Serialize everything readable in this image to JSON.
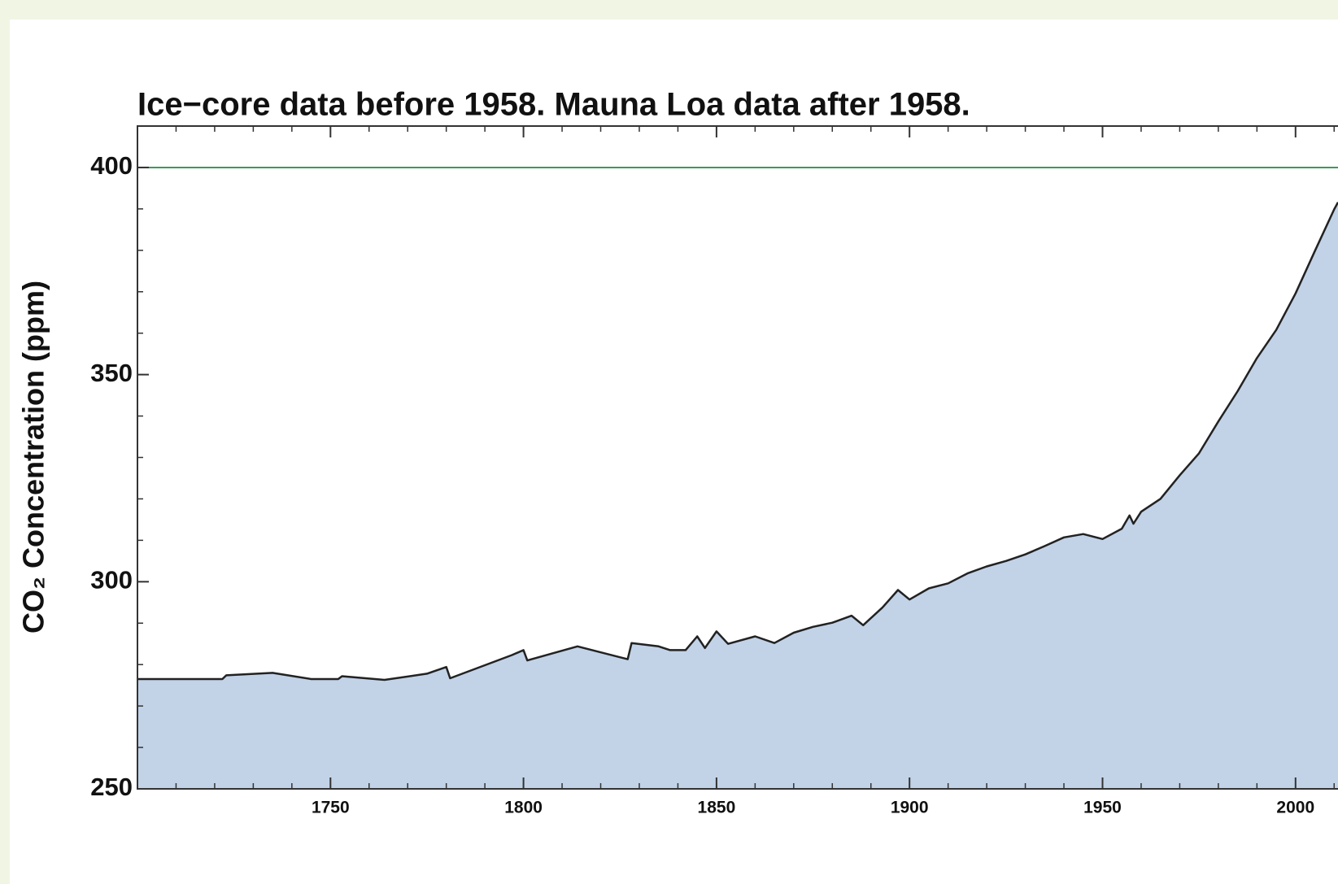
{
  "chart_data": {
    "type": "area",
    "title": "Ice−core data before 1958. Mauna Loa data after 1958.",
    "ylabel": "CO₂ Concentration (ppm)",
    "x": [
      1700,
      1722,
      1723,
      1735,
      1745,
      1752,
      1753,
      1764,
      1775,
      1780,
      1781,
      1797,
      1800,
      1801,
      1814,
      1827,
      1828,
      1835,
      1838,
      1842,
      1845,
      1847,
      1850,
      1853,
      1860,
      1865,
      1870,
      1875,
      1880,
      1885,
      1888,
      1893,
      1897,
      1900,
      1905,
      1910,
      1915,
      1920,
      1925,
      1930,
      1935,
      1940,
      1945,
      1950,
      1955,
      1957,
      1958,
      1960,
      1965,
      1970,
      1975,
      1980,
      1985,
      1990,
      1995,
      2000,
      2005,
      2010,
      2011
    ],
    "series": [
      {
        "name": "CO2",
        "color": "#222222",
        "fill": "#c2d3e8",
        "values": [
          276.5,
          276.5,
          277.4,
          278,
          276.5,
          276.5,
          277.2,
          276.3,
          277.8,
          279.4,
          276.7,
          282.3,
          283.5,
          281,
          284.4,
          281.3,
          285.2,
          284.4,
          283.5,
          283.5,
          286.8,
          284,
          288,
          285,
          286.8,
          285.2,
          287.7,
          289.1,
          290.1,
          291.8,
          289.5,
          293.8,
          298,
          295.7,
          298.4,
          299.6,
          302,
          303.7,
          305,
          306.6,
          308.6,
          310.7,
          311.5,
          310.3,
          312.8,
          316,
          314,
          316.9,
          320,
          325.7,
          331,
          338.7,
          346,
          354,
          360.8,
          369.6,
          379.8,
          389.9,
          391.6
        ]
      }
    ],
    "xlim": [
      1700,
      2011
    ],
    "ylim": [
      250,
      410
    ],
    "xticks": [
      1750,
      1800,
      1850,
      1900,
      1950,
      2000
    ],
    "yticks": [
      250,
      300,
      350,
      400
    ],
    "reference_line": {
      "value": 400,
      "color": "#3a9a5c"
    }
  }
}
